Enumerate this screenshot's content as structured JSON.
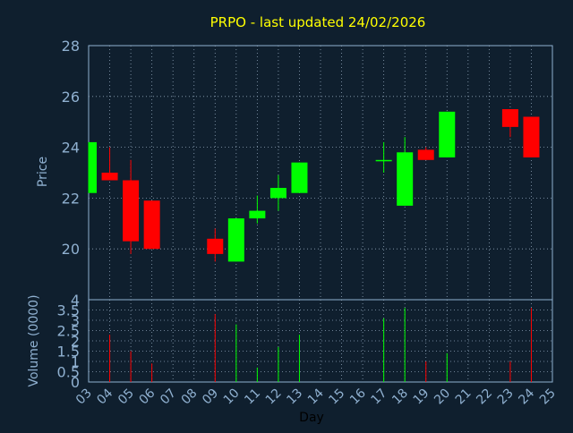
{
  "title": "PRPO - last updated 24/02/2026",
  "colors": {
    "background": "#0f1f2e",
    "axis": "#8fb0d0",
    "grid": "#8fa3b8",
    "title": "#ffff00",
    "up": "#00ff00",
    "down": "#ff0000"
  },
  "chart_data": [
    {
      "type": "candlestick",
      "title": "PRPO - last updated 24/02/2026",
      "xlabel": "",
      "ylabel": "Price",
      "ylim": [
        18,
        28
      ],
      "yticks": [
        20,
        22,
        24,
        26,
        28
      ],
      "grid": true,
      "x": [
        "03",
        "04",
        "05",
        "06",
        "09",
        "10",
        "11",
        "12",
        "13",
        "17",
        "18",
        "19",
        "20",
        "23",
        "24"
      ],
      "open": [
        22.2,
        23.0,
        22.7,
        21.9,
        20.4,
        19.5,
        21.2,
        22.0,
        22.2,
        23.5,
        21.7,
        23.9,
        23.6,
        25.5,
        25.2
      ],
      "high": [
        24.2,
        24.0,
        23.5,
        21.9,
        20.8,
        21.2,
        22.1,
        22.9,
        23.4,
        24.2,
        24.4,
        24.0,
        25.4,
        25.5,
        25.2
      ],
      "low": [
        22.2,
        22.7,
        19.8,
        20.0,
        19.5,
        19.5,
        21.0,
        21.5,
        22.2,
        23.0,
        21.7,
        23.5,
        23.6,
        24.4,
        23.6
      ],
      "close": [
        24.2,
        22.7,
        20.3,
        20.0,
        19.8,
        21.2,
        21.5,
        22.4,
        23.4,
        23.5,
        23.8,
        23.5,
        25.4,
        24.8,
        23.6
      ]
    },
    {
      "type": "bar",
      "xlabel": "Day",
      "ylabel": "Volume (0000)",
      "ylim": [
        0,
        4
      ],
      "yticks": [
        "0",
        "0.5",
        "1",
        "1.5",
        "2",
        "2.5",
        "3",
        "3.5",
        "4"
      ],
      "grid": true,
      "categories": [
        "03",
        "04",
        "05",
        "06",
        "07",
        "08",
        "09",
        "10",
        "11",
        "12",
        "13",
        "14",
        "15",
        "16",
        "17",
        "18",
        "19",
        "20",
        "21",
        "22",
        "23",
        "24",
        "25"
      ],
      "values": [
        0,
        2.3,
        1.5,
        0.9,
        0,
        0,
        3.3,
        2.8,
        0.7,
        1.7,
        2.3,
        0,
        0,
        0,
        3.1,
        3.6,
        1.0,
        1.4,
        0,
        0,
        1.0,
        3.6,
        0
      ],
      "direction": [
        "up",
        "down",
        "down",
        "down",
        "",
        "",
        "down",
        "up",
        "up",
        "up",
        "up",
        "",
        "",
        "",
        "up",
        "up",
        "down",
        "up",
        "",
        "",
        "down",
        "down",
        ""
      ]
    }
  ]
}
